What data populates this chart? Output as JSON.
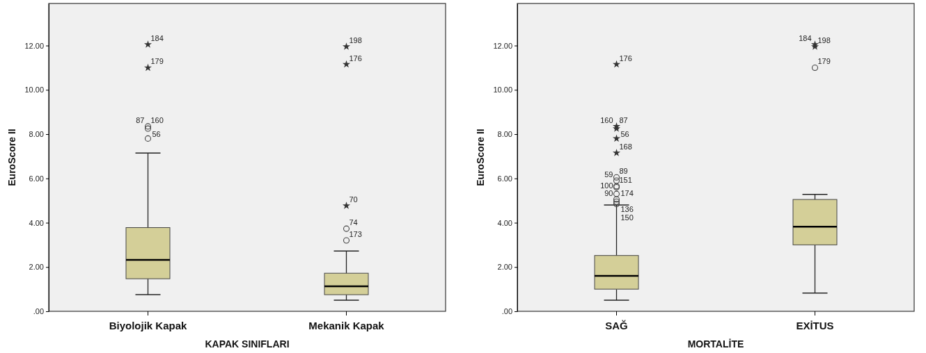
{
  "chart_data": [
    {
      "type": "box",
      "xlabel": "KAPAK SINIFLARI",
      "ylabel": "EuroScore II",
      "categories": [
        "Biyolojik Kapak",
        "Mekanik Kapak"
      ],
      "color": "#d4cf98",
      "ylim": [
        0,
        13.9
      ],
      "yticks": [
        {
          "value": 0,
          "label": ".00"
        },
        {
          "value": 2,
          "label": "2.00"
        },
        {
          "value": 4,
          "label": "4.00"
        },
        {
          "value": 6,
          "label": "6.00"
        },
        {
          "value": 8,
          "label": "8.00"
        },
        {
          "value": 10,
          "label": "10.00"
        },
        {
          "value": 12,
          "label": "12.00"
        }
      ],
      "boxes": [
        {
          "low": 0.75,
          "q1": 1.47,
          "median": 2.32,
          "q3": 3.78,
          "high": 7.15
        },
        {
          "low": 0.5,
          "q1": 0.75,
          "median": 1.13,
          "q3": 1.72,
          "high": 2.72
        }
      ],
      "series": [
        {
          "type": "scatter",
          "marker": "circle",
          "color": "#444444",
          "x": [
            "Biyolojik Kapak",
            "Biyolojik Kapak",
            "Biyolojik Kapak",
            "Mekanik Kapak",
            "Mekanik Kapak"
          ],
          "values": [
            7.8,
            8.25,
            8.35,
            3.2,
            3.73
          ]
        },
        {
          "type": "scatter",
          "marker": "star",
          "color": "#333333",
          "x": [
            "Biyolojik Kapak",
            "Biyolojik Kapak",
            "Mekanik Kapak",
            "Mekanik Kapak",
            "Mekanik Kapak"
          ],
          "values": [
            11.0,
            12.05,
            4.77,
            11.15,
            11.95
          ]
        }
      ],
      "annotations": [
        {
          "text": "184",
          "x": "Biyolojik Kapak",
          "y": 12.05
        },
        {
          "text": "179",
          "x": "Biyolojik Kapak",
          "y": 11.0
        },
        {
          "text": "160",
          "x": "Biyolojik Kapak",
          "y": 8.35
        },
        {
          "text": "87",
          "x": "Biyolojik Kapak",
          "y": 8.35
        },
        {
          "text": "56",
          "x": "Biyolojik Kapak",
          "y": 8.25
        },
        {
          "text": "198",
          "x": "Mekanik Kapak",
          "y": 11.95
        },
        {
          "text": "176",
          "x": "Mekanik Kapak",
          "y": 11.15
        },
        {
          "text": "70",
          "x": "Mekanik Kapak",
          "y": 4.77
        },
        {
          "text": "74",
          "x": "Mekanik Kapak",
          "y": 3.73
        },
        {
          "text": "173",
          "x": "Mekanik Kapak",
          "y": 3.2
        }
      ]
    },
    {
      "type": "box",
      "xlabel": "MORTALİTE",
      "ylabel": "EuroScore II",
      "categories": [
        "SAĞ",
        "EXİTUS"
      ],
      "color": "#d4cf98",
      "ylim": [
        0,
        13.9
      ],
      "yticks": [
        {
          "value": 0,
          "label": ".00"
        },
        {
          "value": 2,
          "label": "2.00"
        },
        {
          "value": 4,
          "label": "4.00"
        },
        {
          "value": 6,
          "label": "6.00"
        },
        {
          "value": 8,
          "label": "8.00"
        },
        {
          "value": 10,
          "label": "10.00"
        },
        {
          "value": 12,
          "label": "12.00"
        }
      ],
      "boxes": [
        {
          "low": 0.5,
          "q1": 1.0,
          "median": 1.6,
          "q3": 2.52,
          "high": 4.8
        },
        {
          "low": 0.82,
          "q1": 3.0,
          "median": 3.82,
          "q3": 5.05,
          "high": 5.28
        }
      ],
      "series": [
        {
          "type": "scatter",
          "marker": "circle",
          "color": "#444444",
          "x": [
            "SAĞ",
            "SAĞ",
            "SAĞ",
            "SAĞ",
            "SAĞ",
            "SAĞ",
            "SAĞ",
            "SAĞ",
            "EXİTUS"
          ],
          "values": [
            4.85,
            4.95,
            5.05,
            5.3,
            5.6,
            5.65,
            5.9,
            6.05,
            11.0
          ]
        },
        {
          "type": "scatter",
          "marker": "star",
          "color": "#333333",
          "x": [
            "SAĞ",
            "SAĞ",
            "SAĞ",
            "SAĞ",
            "SAĞ",
            "EXİTUS",
            "EXİTUS"
          ],
          "values": [
            7.15,
            7.8,
            8.25,
            8.35,
            11.15,
            11.95,
            12.05
          ]
        }
      ],
      "annotations": [
        {
          "text": "176",
          "x": "SAĞ",
          "y": 11.15
        },
        {
          "text": "87",
          "x": "SAĞ",
          "y": 8.35
        },
        {
          "text": "160",
          "x": "SAĞ",
          "y": 8.35
        },
        {
          "text": "56",
          "x": "SAĞ",
          "y": 8.25
        },
        {
          "text": "168",
          "x": "SAĞ",
          "y": 7.15
        },
        {
          "text": "89",
          "x": "SAĞ",
          "y": 6.05
        },
        {
          "text": "59",
          "x": "SAĞ",
          "y": 5.9
        },
        {
          "text": "151",
          "x": "SAĞ",
          "y": 5.65
        },
        {
          "text": "174",
          "x": "SAĞ",
          "y": 5.6
        },
        {
          "text": "90",
          "x": "SAĞ",
          "y": 5.05
        },
        {
          "text": "100",
          "x": "SAĞ",
          "y": 5.3
        },
        {
          "text": "136",
          "x": "SAĞ",
          "y": 4.85
        },
        {
          "text": "150",
          "x": "SAĞ",
          "y": 4.95
        },
        {
          "text": "198",
          "x": "EXİTUS",
          "y": 11.95
        },
        {
          "text": "184",
          "x": "EXİTUS",
          "y": 12.05
        },
        {
          "text": "179",
          "x": "EXİTUS",
          "y": 11.0
        }
      ]
    }
  ]
}
